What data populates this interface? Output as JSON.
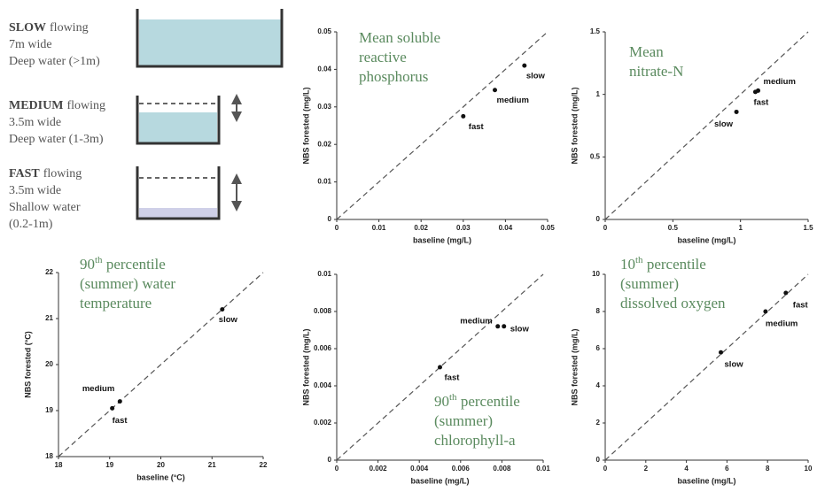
{
  "scenarios": [
    {
      "speed": "SLOW",
      "flow": "flowing",
      "lines": [
        "7m wide",
        "Deep water (>1m)"
      ]
    },
    {
      "speed": "MEDIUM",
      "flow": "flowing",
      "lines": [
        "3.5m wide",
        "Deep water (1-3m)"
      ]
    },
    {
      "speed": "FAST",
      "flow": "flowing",
      "lines": [
        "3.5m wide",
        "Shallow water",
        "(0.2-1m)"
      ]
    }
  ],
  "chart_data": [
    {
      "type": "scatter",
      "title": [
        "Mean soluble",
        "reactive",
        "phosphorus"
      ],
      "xlabel": "baseline (mg/L)",
      "ylabel": "NBS forested (mg/L)",
      "x": [
        0.0445,
        0.0375,
        0.03
      ],
      "values": [
        0.041,
        0.0345,
        0.0275
      ],
      "point_labels": [
        "slow",
        "medium",
        "fast"
      ],
      "color": "#111111",
      "xlim": [
        0,
        0.05
      ],
      "ylim": [
        0,
        0.05
      ],
      "xticks": [
        0,
        0.01,
        0.02,
        0.03,
        0.04,
        0.05
      ],
      "yticks": [
        0,
        0.01,
        0.02,
        0.03,
        0.04,
        0.05
      ]
    },
    {
      "type": "scatter",
      "title": [
        "Mean",
        "nitrate-N"
      ],
      "xlabel": "baseline (mg/L)",
      "ylabel": "NBS forested (mg/L)",
      "x": [
        1.13,
        1.11,
        0.97
      ],
      "values": [
        1.03,
        1.02,
        0.86
      ],
      "point_labels": [
        "medium",
        "fast",
        "slow"
      ],
      "color": "#111111",
      "xlim": [
        0,
        1.5
      ],
      "ylim": [
        0,
        1.5
      ],
      "xticks": [
        0,
        0.5,
        1,
        1.5
      ],
      "yticks": [
        0,
        0.5,
        1,
        1.5
      ]
    },
    {
      "type": "scatter",
      "title": [
        "90th percentile",
        "(summer) water",
        "temperature"
      ],
      "xlabel": "baseline (°C)",
      "ylabel": "NBS forested (°C)",
      "x": [
        21.2,
        19.2,
        19.05
      ],
      "values": [
        21.2,
        19.2,
        19.05
      ],
      "point_labels": [
        "slow",
        "medium",
        "fast"
      ],
      "color": "#111111",
      "xlim": [
        18,
        22
      ],
      "ylim": [
        18,
        22
      ],
      "xticks": [
        18,
        19,
        20,
        21,
        22
      ],
      "yticks": [
        18,
        19,
        20,
        21,
        22
      ]
    },
    {
      "type": "scatter",
      "title": [
        "90th percentile",
        "(summer)",
        "chlorophyll-a"
      ],
      "xlabel": "baseline (mg/L)",
      "ylabel": "NBS forested (mg/L)",
      "x": [
        0.0078,
        0.0081,
        0.005
      ],
      "values": [
        0.0072,
        0.0072,
        0.005
      ],
      "point_labels": [
        "medium",
        "slow",
        "fast"
      ],
      "color": "#111111",
      "xlim": [
        0,
        0.01
      ],
      "ylim": [
        0,
        0.01
      ],
      "xticks": [
        0,
        0.002,
        0.004,
        0.006,
        0.008,
        0.01
      ],
      "yticks": [
        0,
        0.002,
        0.004,
        0.006,
        0.008,
        0.01
      ]
    },
    {
      "type": "scatter",
      "title": [
        "10th percentile",
        "(summer)",
        "dissolved oxygen"
      ],
      "xlabel": "baseline (mg/L)",
      "ylabel": "NBS forested (mg/L)",
      "x": [
        8.9,
        7.9,
        5.7
      ],
      "values": [
        9.0,
        8.0,
        5.8
      ],
      "point_labels": [
        "fast",
        "medium",
        "slow"
      ],
      "color": "#111111",
      "xlim": [
        0,
        10
      ],
      "ylim": [
        0,
        10
      ],
      "xticks": [
        0,
        2,
        4,
        6,
        8,
        10
      ],
      "yticks": [
        0,
        2,
        4,
        6,
        8,
        10
      ]
    }
  ]
}
